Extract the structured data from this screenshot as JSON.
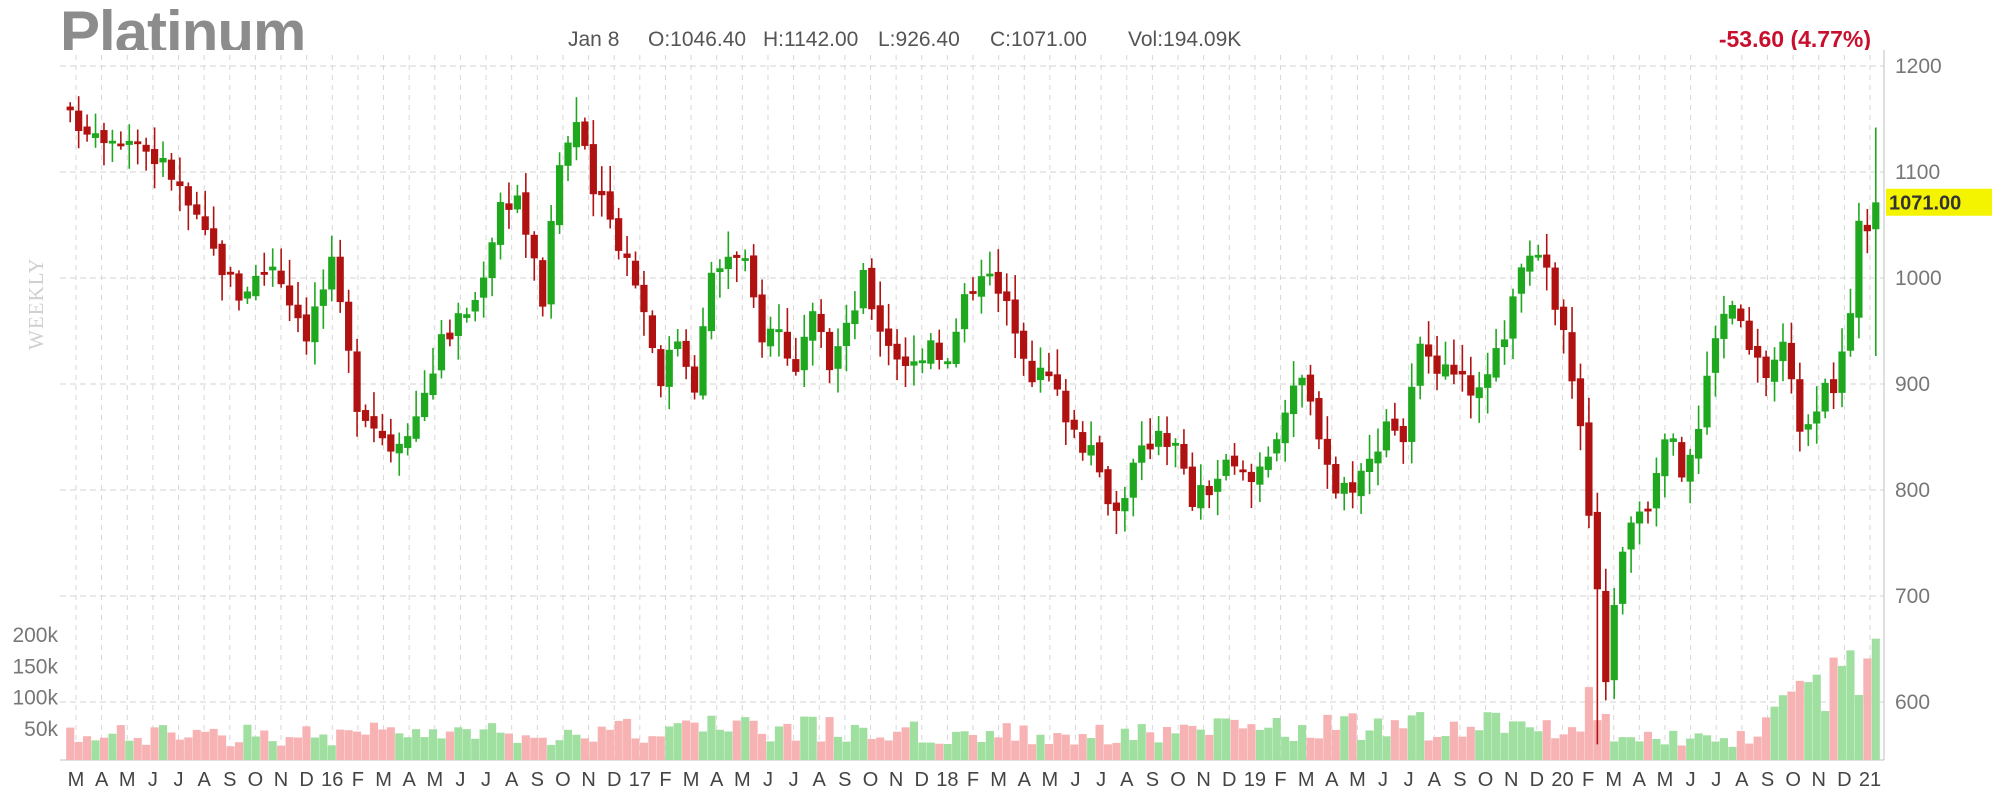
{
  "header": {
    "title": "Platinum",
    "date": "Jan 8",
    "open": "O:1046.40",
    "high": "H:1142.00",
    "low": "L:926.40",
    "close": "C:1071.00",
    "volume": "Vol:194.09K",
    "change": "-53.60 (4.77%)",
    "period": "WEEKLY"
  },
  "colors": {
    "up": "#1fa81f",
    "down": "#b01212",
    "up_volume": "#9fdf9f",
    "down_volume": "#f7b3b3",
    "change": "#c8102e",
    "last_price_box": "#f4f400"
  },
  "chart_data": {
    "type": "candlestick",
    "title": "Platinum",
    "price_axis": {
      "side": "right",
      "range": [
        560,
        1200
      ],
      "ticks": [
        600,
        700,
        800,
        900,
        1000,
        1100,
        1200
      ],
      "tick_labels": [
        "600",
        "700",
        "800",
        "900",
        "1000",
        "1100",
        "1200"
      ]
    },
    "last_price": 1071.0,
    "last_price_label": "1071.00",
    "volume_axis": {
      "side": "left",
      "range": [
        0,
        250000
      ],
      "ticks": [
        50000,
        100000,
        150000,
        200000
      ],
      "tick_labels": [
        "50k",
        "100k",
        "150k",
        "200k"
      ]
    },
    "x_labels": [
      "M",
      "A",
      "M",
      "J",
      "J",
      "A",
      "S",
      "O",
      "N",
      "D",
      "16",
      "F",
      "M",
      "A",
      "M",
      "J",
      "J",
      "A",
      "S",
      "O",
      "N",
      "D",
      "17",
      "F",
      "M",
      "A",
      "M",
      "J",
      "J",
      "A",
      "S",
      "O",
      "N",
      "D",
      "18",
      "F",
      "M",
      "A",
      "M",
      "J",
      "J",
      "A",
      "S",
      "O",
      "N",
      "D",
      "19",
      "F",
      "M",
      "A",
      "M",
      "J",
      "J",
      "A",
      "S",
      "O",
      "N",
      "D",
      "20",
      "F",
      "M",
      "A",
      "M",
      "J",
      "J",
      "A",
      "S",
      "O",
      "N",
      "D",
      "21"
    ],
    "grid": true,
    "price_path": [
      [
        0,
        1150
      ],
      [
        4,
        1138
      ],
      [
        8,
        1130
      ],
      [
        12,
        1098
      ],
      [
        16,
        1038
      ],
      [
        20,
        985
      ],
      [
        24,
        1015
      ],
      [
        28,
        950
      ],
      [
        31,
        1010
      ],
      [
        34,
        885
      ],
      [
        38,
        842
      ],
      [
        41,
        870
      ],
      [
        44,
        940
      ],
      [
        48,
        978
      ],
      [
        51,
        1070
      ],
      [
        53,
        1078
      ],
      [
        55,
        1012
      ],
      [
        56,
        980
      ],
      [
        58,
        1108
      ],
      [
        60,
        1148
      ],
      [
        62,
        1082
      ],
      [
        64,
        1055
      ],
      [
        67,
        1000
      ],
      [
        70,
        908
      ],
      [
        72,
        944
      ],
      [
        74,
        902
      ],
      [
        76,
        1000
      ],
      [
        78,
        1022
      ],
      [
        80,
        1010
      ],
      [
        82,
        948
      ],
      [
        84,
        952
      ],
      [
        86,
        910
      ],
      [
        88,
        958
      ],
      [
        90,
        920
      ],
      [
        92,
        950
      ],
      [
        94,
        998
      ],
      [
        96,
        955
      ],
      [
        98,
        928
      ],
      [
        100,
        918
      ],
      [
        102,
        945
      ],
      [
        104,
        918
      ],
      [
        106,
        978
      ],
      [
        108,
        1012
      ],
      [
        110,
        985
      ],
      [
        112,
        958
      ],
      [
        114,
        912
      ],
      [
        116,
        905
      ],
      [
        119,
        858
      ],
      [
        121,
        832
      ],
      [
        124,
        780
      ],
      [
        126,
        820
      ],
      [
        129,
        860
      ],
      [
        131,
        840
      ],
      [
        133,
        790
      ],
      [
        135,
        802
      ],
      [
        137,
        822
      ],
      [
        140,
        808
      ],
      [
        142,
        838
      ],
      [
        144,
        875
      ],
      [
        146,
        902
      ],
      [
        148,
        858
      ],
      [
        150,
        800
      ],
      [
        152,
        808
      ],
      [
        154,
        825
      ],
      [
        156,
        868
      ],
      [
        158,
        850
      ],
      [
        160,
        932
      ],
      [
        162,
        900
      ],
      [
        164,
        918
      ],
      [
        166,
        880
      ],
      [
        168,
        900
      ],
      [
        171,
        975
      ],
      [
        173,
        1028
      ],
      [
        175,
        1000
      ],
      [
        177,
        962
      ],
      [
        179,
        855
      ],
      [
        181,
        700
      ],
      [
        182,
        620
      ],
      [
        183,
        698
      ],
      [
        185,
        775
      ],
      [
        187,
        790
      ],
      [
        189,
        858
      ],
      [
        191,
        818
      ],
      [
        193,
        858
      ],
      [
        195,
        950
      ],
      [
        197,
        975
      ],
      [
        199,
        930
      ],
      [
        201,
        910
      ],
      [
        203,
        938
      ],
      [
        205,
        862
      ],
      [
        207,
        882
      ],
      [
        209,
        898
      ],
      [
        211,
        958
      ],
      [
        212,
        1060
      ],
      [
        213,
        1050
      ],
      [
        214,
        1071
      ]
    ],
    "volume_levels": [
      [
        0,
        38000
      ],
      [
        40,
        42000
      ],
      [
        60,
        44000
      ],
      [
        80,
        52000
      ],
      [
        100,
        44000
      ],
      [
        120,
        40000
      ],
      [
        140,
        48000
      ],
      [
        160,
        55000
      ],
      [
        175,
        52000
      ],
      [
        181,
        88000
      ],
      [
        184,
        30000
      ],
      [
        200,
        40000
      ],
      [
        214,
        194090
      ]
    ]
  }
}
